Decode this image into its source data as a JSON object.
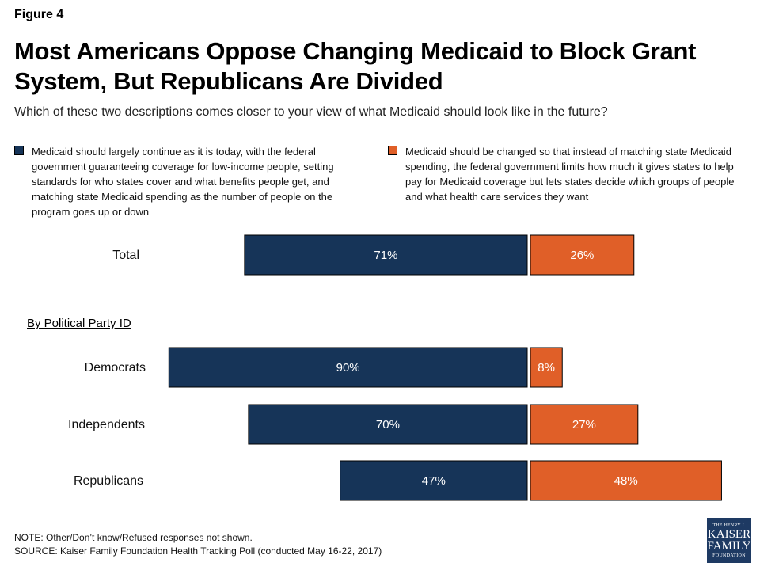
{
  "figure_label": "Figure 4",
  "colors": {
    "continue": "#163458",
    "changed": "#e05f28"
  },
  "chart_data": {
    "type": "bar",
    "title": "Most Americans Oppose Changing Medicaid to Block Grant System, But Republicans Are Divided",
    "subtitle": "Which of these two descriptions comes closer to your view of what Medicaid should look like in the future?",
    "section_label": "By Political Party ID",
    "categories": [
      "Total",
      "Democrats",
      "Independents",
      "Republicans"
    ],
    "series": [
      {
        "name": "Medicaid should largely continue as it is today, with the federal government guaranteeing coverage for low-income people, setting standards for who states cover and what benefits people get, and matching state Medicaid spending as the number of people on the program goes up or down",
        "values": [
          71,
          90,
          70,
          47
        ],
        "labels": [
          "71%",
          "90%",
          "70%",
          "47%"
        ]
      },
      {
        "name": "Medicaid should be changed so that instead of matching state Medicaid spending, the federal government limits how much it gives states to help pay for Medicaid coverage but lets states decide which groups of people and what health care services they want",
        "values": [
          26,
          8,
          27,
          48
        ],
        "labels": [
          "26%",
          "8%",
          "27%",
          "48%"
        ]
      }
    ],
    "legend_position": "top",
    "grid": false
  },
  "notes": {
    "note": "NOTE: Other/Don’t know/Refused responses not shown.",
    "source": "SOURCE: Kaiser Family Foundation Health Tracking Poll (conducted May 16-22, 2017)"
  },
  "logo": {
    "line1": "THE HENRY J.",
    "line2": "KAISER",
    "line3": "FAMILY",
    "line4": "FOUNDATION"
  }
}
